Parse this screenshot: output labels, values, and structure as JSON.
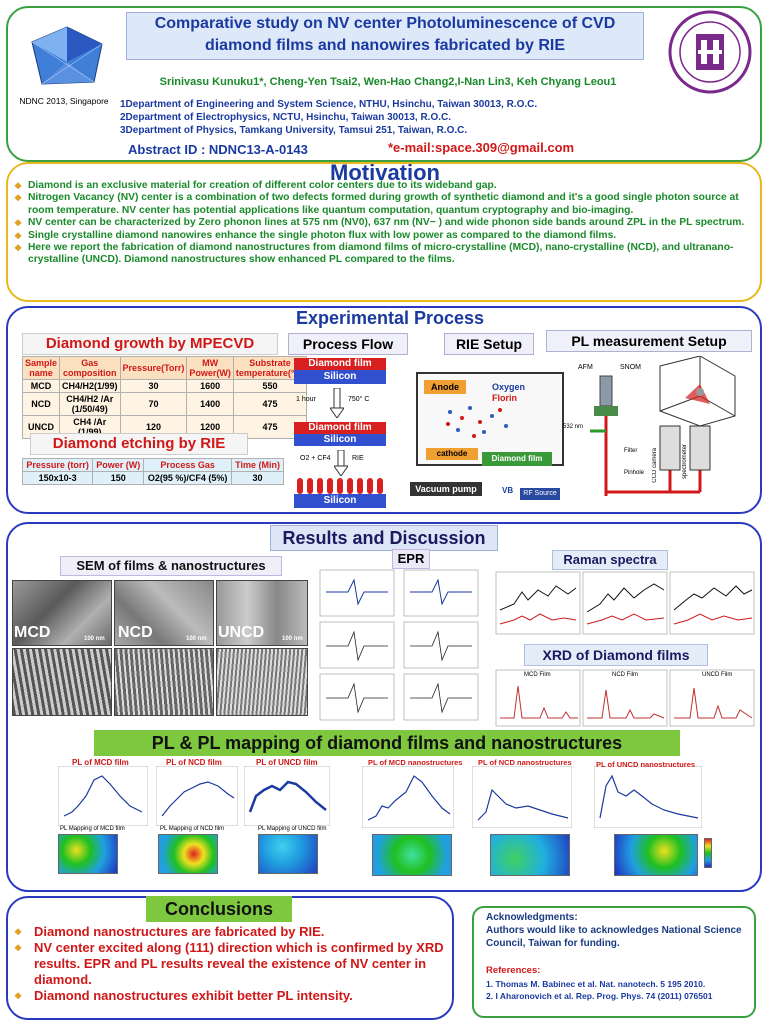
{
  "header": {
    "title_line1": "Comparative study on NV center Photoluminescence of CVD",
    "title_line2": "diamond films and nanowires fabricated by RIE",
    "authors": "Srinivasu Kunuku1*, Cheng-Yen Tsai2, Wen-Hao Chang2,I-Nan Lin3, Keh Chyang Leou1",
    "affil1": "1Department of Engineering and System Science, NTHU, Hsinchu, Taiwan 30013, R.O.C.",
    "affil2": "2Department of Electrophysics, NCTU, Hsinchu, Taiwan 30013, R.O.C.",
    "affil3": "3Department of Physics, Tamkang University, Tamsui 251, Taiwan, R.O.C.",
    "abstract_id": "Abstract ID :  NDNC13-A-0143",
    "email": "*e-mail:space.309@gmail.com",
    "conf_label": "NDNC 2013, Singapore"
  },
  "motivation": {
    "title": "Motivation",
    "bullets": [
      "Diamond is an exclusive material for creation of different color centers due to  its wideband gap.",
      "Nitrogen Vacancy (NV) center is a combination of two defects formed during growth of synthetic diamond and it's a good single photon source at room temperature. NV center has potential applications like  quantum computation, quantum cryptography and bio-imaging.",
      "NV  center can be characterized by  Zero phonon  lines at 575 nm (NV0), 637 nm (NV− )  and wide phonon side bands around ZPL in the PL spectrum.",
      "Single  crystalline diamond nanowires enhance the single photon flux  with  low power as compared to the diamond  films.",
      "Here we report the  fabrication  of diamond nanostructures from  diamond films of micro-crystalline (MCD), nano-crystalline (NCD), and ultranano-crystalline (UNCD). Diamond nanostructures show enhanced PL compared to the films."
    ]
  },
  "experimental": {
    "title": "Experimental  Process",
    "growth_title": "Diamond growth by MPECVD",
    "growth_headers": [
      "Sample name",
      "Gas composition",
      "Pressure(Torr)",
      "MW Power(W)",
      "Substrate temperature(°C)"
    ],
    "growth_rows": [
      [
        "MCD",
        "CH4/H2(1/99)",
        "30",
        "1600",
        "550"
      ],
      [
        "NCD",
        "CH4/H2 /Ar (1/50/49)",
        "70",
        "1400",
        "475"
      ],
      [
        "UNCD",
        "CH4 /Ar (1/99)",
        "120",
        "1200",
        "475"
      ]
    ],
    "etch_title": "Diamond etching by RIE",
    "etch_headers": [
      "Pressure (torr)",
      "Power (W)",
      "Process Gas",
      "Time (Min)"
    ],
    "etch_row": [
      "150x10-3",
      "150",
      "O2(95 %)/CF4 (5%)",
      "30"
    ],
    "process_flow": "Process Flow",
    "pf_film": "Diamond film",
    "pf_silicon": "Silicon",
    "pf_step1": "1 hour",
    "pf_temp": "750° C",
    "pf_gas": "O2 + CF4",
    "pf_rie": "RIE",
    "rie_setup": "RIE Setup",
    "rie_anode": "Anode",
    "rie_oxygen": "Oxygen",
    "rie_florin": "Florin",
    "rie_cathode": "cathode",
    "rie_film": "Diamond film",
    "rie_pump": "Vacuum pump",
    "rie_vb": "VB",
    "rie_rf": "RF Source",
    "pl_setup": "PL measurement Setup",
    "pl_afm": "AFM",
    "pl_snom": "SNOM",
    "pl_532": "532 nm",
    "pl_filter": "Filter",
    "pl_pinhole": "Pinhole",
    "pl_ccd": "CCD camera",
    "pl_spec": "spectrometer"
  },
  "results": {
    "title": "Results and Discussion",
    "sem_title": "SEM of films & nanostructures",
    "sem_labels": [
      "MCD",
      "NCD",
      "UNCD"
    ],
    "sem_scale": "100 nm",
    "epr_title": "EPR",
    "raman_title": "Raman spectra",
    "xrd_title": "XRD of  Diamond films",
    "xrd_labels": [
      "MCD Film",
      "NCD Film",
      "UNCD Film"
    ]
  },
  "pl": {
    "title": "PL & PL mapping of diamond films and nanostructures",
    "plots": [
      "PL of MCD film",
      "PL of NCD film",
      "PL of UNCD film",
      "PL of MCD nanostructures",
      "PL of NCD nanostructures",
      "PL of UNCD nanostructures"
    ],
    "maps": [
      "PL Mapping of MCD film",
      "PL Mapping of NCD film",
      "PL Mapping of UNCD film"
    ]
  },
  "conclusions": {
    "title": "Conclusions",
    "items": [
      "Diamond nanostructures are fabricated by RIE.",
      "NV center  excited  along  (111) direction which is confirmed  by  XRD results. EPR and PL results reveal the existence of NV center in diamond.",
      "Diamond nanostructures exhibit better PL intensity."
    ]
  },
  "ack": {
    "title": "Acknowledgments:",
    "text": "Authors would like to  acknowledges National Science Council, Taiwan for funding.",
    "ref_title": "References:",
    "refs": [
      "1. Thomas M. Babinec  et al.  Nat. nanotech. 5 195 2010.",
      "2. I Aharonovich et al. Rep. Prog. Phys. 74 (2011) 076501"
    ]
  },
  "colors": {
    "green_border": "#3aa040",
    "blue_border": "#2a3ac0",
    "yellow_border": "#e8b820",
    "title_red": "#d01818",
    "title_green": "#1a8a2a"
  }
}
